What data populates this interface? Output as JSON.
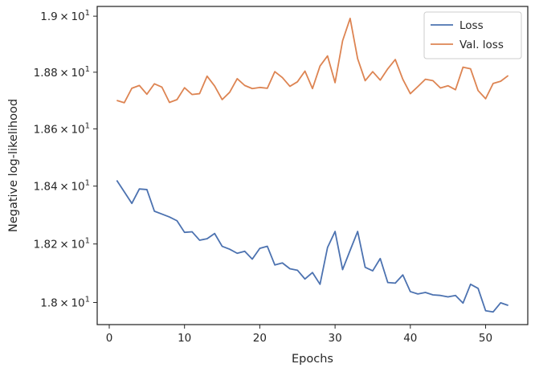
{
  "chart_data": {
    "type": "line",
    "title": "",
    "xlabel": "Epochs",
    "ylabel": "Negative log-likelihood",
    "yscale": "log",
    "xlim": [
      -1.6,
      55.6
    ],
    "ylim": [
      17.925,
      19.035
    ],
    "grid": false,
    "legend_position": "top-right",
    "x_ticks": [
      {
        "value": 0,
        "label": "0"
      },
      {
        "value": 10,
        "label": "10"
      },
      {
        "value": 20,
        "label": "20"
      },
      {
        "value": 30,
        "label": "30"
      },
      {
        "value": 40,
        "label": "40"
      },
      {
        "value": 50,
        "label": "50"
      }
    ],
    "y_ticks": [
      {
        "value": 18.0,
        "mantissa": "1.8",
        "exponent": "1"
      },
      {
        "value": 18.2,
        "mantissa": "1.82",
        "exponent": "1"
      },
      {
        "value": 18.4,
        "mantissa": "1.84",
        "exponent": "1"
      },
      {
        "value": 18.6,
        "mantissa": "1.86",
        "exponent": "1"
      },
      {
        "value": 18.8,
        "mantissa": "1.88",
        "exponent": "1"
      },
      {
        "value": 19.0,
        "mantissa": "1.9",
        "exponent": "1"
      }
    ],
    "x": [
      1,
      2,
      3,
      4,
      5,
      6,
      7,
      8,
      9,
      10,
      11,
      12,
      13,
      14,
      15,
      16,
      17,
      18,
      19,
      20,
      21,
      22,
      23,
      24,
      25,
      26,
      27,
      28,
      29,
      30,
      31,
      32,
      33,
      34,
      35,
      36,
      37,
      38,
      39,
      40,
      41,
      42,
      43,
      44,
      45,
      46,
      47,
      48,
      49,
      50,
      51,
      52,
      53
    ],
    "series": [
      {
        "name": "Loss",
        "color": "#4c72b0",
        "values": [
          18.42,
          18.38,
          18.34,
          18.39,
          18.388,
          18.313,
          18.303,
          18.293,
          18.28,
          18.24,
          18.242,
          18.213,
          18.218,
          18.236,
          18.192,
          18.182,
          18.168,
          18.175,
          18.148,
          18.185,
          18.192,
          18.128,
          18.135,
          18.115,
          18.11,
          18.08,
          18.102,
          18.062,
          18.188,
          18.243,
          18.112,
          18.178,
          18.243,
          18.12,
          18.108,
          18.15,
          18.068,
          18.066,
          18.094,
          18.037,
          18.029,
          18.034,
          18.026,
          18.024,
          18.019,
          18.024,
          17.998,
          18.062,
          18.048,
          17.972,
          17.968,
          17.999,
          17.99
        ]
      },
      {
        "name": "Val. loss",
        "color": "#dd8452",
        "values": [
          18.7,
          18.692,
          18.743,
          18.753,
          18.722,
          18.759,
          18.747,
          18.693,
          18.703,
          18.745,
          18.721,
          18.724,
          18.786,
          18.751,
          18.703,
          18.729,
          18.777,
          18.753,
          18.742,
          18.746,
          18.743,
          18.802,
          18.781,
          18.75,
          18.766,
          18.804,
          18.742,
          18.822,
          18.858,
          18.763,
          18.912,
          18.992,
          18.848,
          18.77,
          18.802,
          18.772,
          18.812,
          18.845,
          18.775,
          18.724,
          18.749,
          18.775,
          18.77,
          18.744,
          18.752,
          18.738,
          18.818,
          18.812,
          18.735,
          18.706,
          18.76,
          18.768,
          18.788
        ]
      }
    ]
  }
}
